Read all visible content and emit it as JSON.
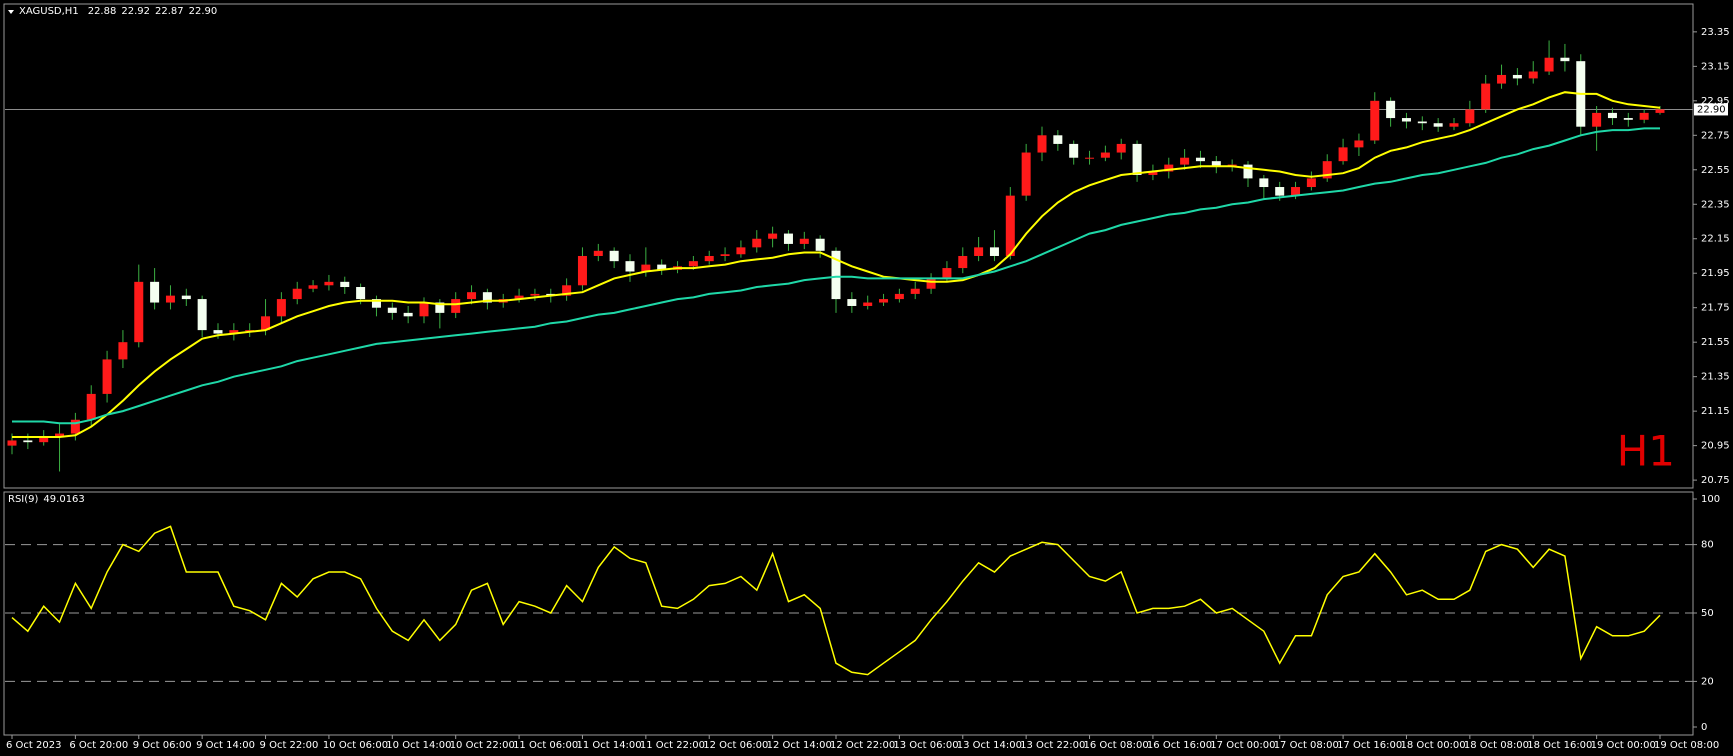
{
  "chart_data": [
    {
      "type": "candlestick",
      "title": "XAGUSD,H1",
      "header": {
        "values": [
          22.88,
          22.92,
          22.87,
          22.9
        ],
        "value_labels": [
          "22.88",
          "22.92",
          "22.87",
          "22.90"
        ]
      },
      "timeframe_label": "H1",
      "categories": [
        "6 Oct 2023",
        null,
        null,
        null,
        "6 Oct 20:00",
        null,
        null,
        null,
        "9 Oct 06:00",
        null,
        null,
        null,
        "9 Oct 14:00",
        null,
        null,
        null,
        "9 Oct 22:00",
        null,
        null,
        null,
        "10 Oct 06:00",
        null,
        null,
        null,
        "10 Oct 14:00",
        null,
        null,
        null,
        "10 Oct 22:00",
        null,
        null,
        null,
        "11 Oct 06:00",
        null,
        null,
        null,
        "11 Oct 14:00",
        null,
        null,
        null,
        "11 Oct 22:00",
        null,
        null,
        null,
        "12 Oct 06:00",
        null,
        null,
        null,
        "12 Oct 14:00",
        null,
        null,
        null,
        "12 Oct 22:00",
        null,
        null,
        null,
        "13 Oct 06:00",
        null,
        null,
        null,
        "13 Oct 14:00",
        null,
        null,
        null,
        "13 Oct 22:00",
        null,
        null,
        null,
        "16 Oct 08:00",
        null,
        null,
        null,
        "16 Oct 16:00",
        null,
        null,
        null,
        "17 Oct 00:00",
        null,
        null,
        null,
        "17 Oct 08:00",
        null,
        null,
        null,
        "17 Oct 16:00",
        null,
        null,
        null,
        "18 Oct 00:00",
        null,
        null,
        null,
        "18 Oct 08:00",
        null,
        null,
        null,
        "18 Oct 16:00",
        null,
        null,
        null,
        "19 Oct 00:00",
        null,
        null,
        null,
        "19 Oct 08:00"
      ],
      "open": [
        20.95,
        20.98,
        20.97,
        21.0,
        21.02,
        21.1,
        21.25,
        21.45,
        21.55,
        21.9,
        21.78,
        21.82,
        21.8,
        21.62,
        21.6,
        21.62,
        21.62,
        21.7,
        21.8,
        21.86,
        21.88,
        21.9,
        21.87,
        21.8,
        21.75,
        21.72,
        21.7,
        21.78,
        21.72,
        21.8,
        21.84,
        21.78,
        21.8,
        21.82,
        21.83,
        21.82,
        21.88,
        22.05,
        22.08,
        22.02,
        21.96,
        22.0,
        21.97,
        21.99,
        22.02,
        22.05,
        22.06,
        22.1,
        22.15,
        22.18,
        22.12,
        22.15,
        22.08,
        21.8,
        21.76,
        21.78,
        21.8,
        21.83,
        21.86,
        21.92,
        21.98,
        22.05,
        22.1,
        22.05,
        22.4,
        22.65,
        22.75,
        22.7,
        22.62,
        22.62,
        22.65,
        22.7,
        22.52,
        22.54,
        22.58,
        22.62,
        22.6,
        22.57,
        22.58,
        22.5,
        22.45,
        22.4,
        22.45,
        22.5,
        22.6,
        22.68,
        22.72,
        22.95,
        22.85,
        22.83,
        22.82,
        22.8,
        22.82,
        22.9,
        23.05,
        23.1,
        23.08,
        23.12,
        23.2,
        23.18,
        22.8,
        22.88,
        22.85,
        22.84,
        22.88
      ],
      "high": [
        21.02,
        21.02,
        21.04,
        21.08,
        21.14,
        21.3,
        21.5,
        21.62,
        22.0,
        21.98,
        21.88,
        21.86,
        21.82,
        21.66,
        21.66,
        21.66,
        21.8,
        21.84,
        21.9,
        21.91,
        21.94,
        21.93,
        21.89,
        21.82,
        21.78,
        21.76,
        21.81,
        21.8,
        21.84,
        21.88,
        21.86,
        21.83,
        21.86,
        21.86,
        21.86,
        21.92,
        22.1,
        22.12,
        22.1,
        22.06,
        22.1,
        22.03,
        22.02,
        22.05,
        22.08,
        22.1,
        22.14,
        22.2,
        22.22,
        22.2,
        22.19,
        22.17,
        22.1,
        21.84,
        21.82,
        21.83,
        21.86,
        21.9,
        21.95,
        22.02,
        22.1,
        22.16,
        22.2,
        22.45,
        22.7,
        22.8,
        22.78,
        22.72,
        22.66,
        22.69,
        22.73,
        22.72,
        22.58,
        22.62,
        22.67,
        22.66,
        22.63,
        22.61,
        22.6,
        22.52,
        22.48,
        22.48,
        22.54,
        22.64,
        22.73,
        22.76,
        23.0,
        22.97,
        22.88,
        22.86,
        22.85,
        22.85,
        22.95,
        23.1,
        23.16,
        23.14,
        23.18,
        23.3,
        23.28,
        23.22,
        22.92,
        22.91,
        22.88,
        22.9,
        22.92
      ],
      "low": [
        20.9,
        20.93,
        20.95,
        20.8,
        20.98,
        21.06,
        21.2,
        21.4,
        21.52,
        21.74,
        21.74,
        21.76,
        21.58,
        21.57,
        21.56,
        21.58,
        21.59,
        21.66,
        21.77,
        21.84,
        21.85,
        21.83,
        21.77,
        21.7,
        21.68,
        21.66,
        21.66,
        21.63,
        21.69,
        21.77,
        21.74,
        21.75,
        21.78,
        21.79,
        21.78,
        21.79,
        21.85,
        22.02,
        21.98,
        21.9,
        21.93,
        21.94,
        21.95,
        21.97,
        22.0,
        22.02,
        22.04,
        22.07,
        22.1,
        22.08,
        22.09,
        22.04,
        21.72,
        21.72,
        21.74,
        21.76,
        21.78,
        21.8,
        21.83,
        21.9,
        21.95,
        22.02,
        22.02,
        22.03,
        22.37,
        22.6,
        22.66,
        22.58,
        22.58,
        22.6,
        22.61,
        22.48,
        22.49,
        22.5,
        22.55,
        22.56,
        22.53,
        22.54,
        22.45,
        22.38,
        22.37,
        22.38,
        22.43,
        22.48,
        22.58,
        22.63,
        22.7,
        22.8,
        22.79,
        22.78,
        22.77,
        22.78,
        22.8,
        22.88,
        23.02,
        23.04,
        23.05,
        23.1,
        23.12,
        22.75,
        22.66,
        22.81,
        22.8,
        22.82,
        22.87
      ],
      "close": [
        20.98,
        20.97,
        21.0,
        21.02,
        21.1,
        21.25,
        21.45,
        21.55,
        21.9,
        21.78,
        21.82,
        21.8,
        21.62,
        21.6,
        21.62,
        21.62,
        21.7,
        21.8,
        21.86,
        21.88,
        21.9,
        21.87,
        21.8,
        21.75,
        21.72,
        21.7,
        21.78,
        21.72,
        21.8,
        21.84,
        21.78,
        21.8,
        21.82,
        21.83,
        21.82,
        21.88,
        22.05,
        22.08,
        22.02,
        21.96,
        22.0,
        21.97,
        21.99,
        22.02,
        22.05,
        22.06,
        22.1,
        22.15,
        22.18,
        22.12,
        22.15,
        22.08,
        21.8,
        21.76,
        21.78,
        21.8,
        21.83,
        21.86,
        21.92,
        21.98,
        22.05,
        22.1,
        22.05,
        22.4,
        22.65,
        22.75,
        22.7,
        22.62,
        22.62,
        22.65,
        22.7,
        22.52,
        22.54,
        22.58,
        22.62,
        22.6,
        22.57,
        22.58,
        22.5,
        22.45,
        22.4,
        22.45,
        22.5,
        22.6,
        22.68,
        22.72,
        22.95,
        22.85,
        22.83,
        22.82,
        22.8,
        22.82,
        22.9,
        23.05,
        23.1,
        23.08,
        23.12,
        23.2,
        23.18,
        22.8,
        22.88,
        22.85,
        22.84,
        22.88,
        22.9
      ],
      "up_color": "#ff1a1a",
      "down_color": "#f4fff0",
      "wick_color": "#3cb043",
      "ma_series": [
        {
          "color": "#ffff00",
          "values": [
            21.0,
            21.0,
            21.0,
            21.0,
            21.01,
            21.06,
            21.13,
            21.21,
            21.3,
            21.38,
            21.45,
            21.51,
            21.57,
            21.59,
            21.6,
            21.61,
            21.62,
            21.66,
            21.7,
            21.73,
            21.76,
            21.78,
            21.79,
            21.79,
            21.79,
            21.78,
            21.78,
            21.77,
            21.77,
            21.78,
            21.79,
            21.79,
            21.8,
            21.81,
            21.82,
            21.83,
            21.84,
            21.88,
            21.92,
            21.94,
            21.96,
            21.97,
            21.98,
            21.98,
            21.99,
            22.0,
            22.02,
            22.03,
            22.04,
            22.06,
            22.07,
            22.07,
            22.03,
            21.99,
            21.96,
            21.93,
            21.92,
            21.91,
            21.9,
            21.9,
            21.91,
            21.94,
            21.98,
            22.06,
            22.18,
            22.28,
            22.36,
            22.42,
            22.46,
            22.49,
            22.52,
            22.53,
            22.54,
            22.55,
            22.56,
            22.57,
            22.57,
            22.57,
            22.56,
            22.55,
            22.54,
            22.52,
            22.51,
            22.52,
            22.53,
            22.56,
            22.62,
            22.66,
            22.68,
            22.71,
            22.73,
            22.75,
            22.78,
            22.82,
            22.86,
            22.9,
            22.93,
            22.97,
            23.0,
            22.99,
            22.99,
            22.95,
            22.93,
            22.92,
            22.91
          ]
        },
        {
          "color": "#1fd8a8",
          "values": [
            21.09,
            21.09,
            21.09,
            21.08,
            21.08,
            21.1,
            21.13,
            21.15,
            21.18,
            21.21,
            21.24,
            21.27,
            21.3,
            21.32,
            21.35,
            21.37,
            21.39,
            21.41,
            21.44,
            21.46,
            21.48,
            21.5,
            21.52,
            21.54,
            21.55,
            21.56,
            21.57,
            21.58,
            21.59,
            21.6,
            21.61,
            21.62,
            21.63,
            21.64,
            21.66,
            21.67,
            21.69,
            21.71,
            21.72,
            21.74,
            21.76,
            21.78,
            21.8,
            21.81,
            21.83,
            21.84,
            21.85,
            21.87,
            21.88,
            21.89,
            21.91,
            21.92,
            21.93,
            21.93,
            21.92,
            21.92,
            21.92,
            21.92,
            21.92,
            21.92,
            21.92,
            21.94,
            21.96,
            21.99,
            22.02,
            22.06,
            22.1,
            22.14,
            22.18,
            22.2,
            22.23,
            22.25,
            22.27,
            22.29,
            22.3,
            22.32,
            22.33,
            22.35,
            22.36,
            22.38,
            22.39,
            22.4,
            22.41,
            22.42,
            22.43,
            22.45,
            22.47,
            22.48,
            22.5,
            22.52,
            22.53,
            22.55,
            22.57,
            22.59,
            22.62,
            22.64,
            22.67,
            22.69,
            22.72,
            22.75,
            22.77,
            22.78,
            22.78,
            22.79,
            22.79
          ]
        }
      ],
      "current_price": {
        "value": 22.9,
        "label": "22.90"
      },
      "ylim": [
        20.71,
        23.5
      ],
      "yticks": [
        20.75,
        20.95,
        21.15,
        21.35,
        21.55,
        21.75,
        21.95,
        22.15,
        22.35,
        22.55,
        22.75,
        22.95,
        23.15,
        23.35
      ]
    },
    {
      "type": "line",
      "title": "RSI(9)",
      "current_value": 49.0163,
      "color": "#ffff00",
      "values": [
        48,
        42,
        53,
        46,
        63,
        52,
        68,
        80,
        77,
        85,
        88,
        68,
        68,
        68,
        53,
        51,
        47,
        63,
        57,
        65,
        68,
        68,
        65,
        52,
        42,
        38,
        47,
        38,
        45,
        60,
        63,
        45,
        55,
        53,
        50,
        62,
        55,
        70,
        79,
        74,
        72,
        53,
        52,
        56,
        62,
        63,
        66,
        60,
        76,
        55,
        58,
        52,
        28,
        24,
        23,
        28,
        33,
        38,
        47,
        55,
        64,
        72,
        68,
        75,
        78,
        81,
        80,
        73,
        66,
        64,
        68,
        50,
        52,
        52,
        53,
        56,
        50,
        52,
        47,
        42,
        28,
        40,
        40,
        58,
        66,
        68,
        76,
        68,
        58,
        60,
        56,
        56,
        60,
        77,
        80,
        78,
        70,
        78,
        75,
        30,
        44,
        40,
        40,
        42,
        49
      ],
      "ylim": [
        0,
        100
      ],
      "yticks": [
        0,
        20,
        50,
        80,
        100
      ],
      "levels": [
        20,
        50,
        80
      ]
    }
  ]
}
